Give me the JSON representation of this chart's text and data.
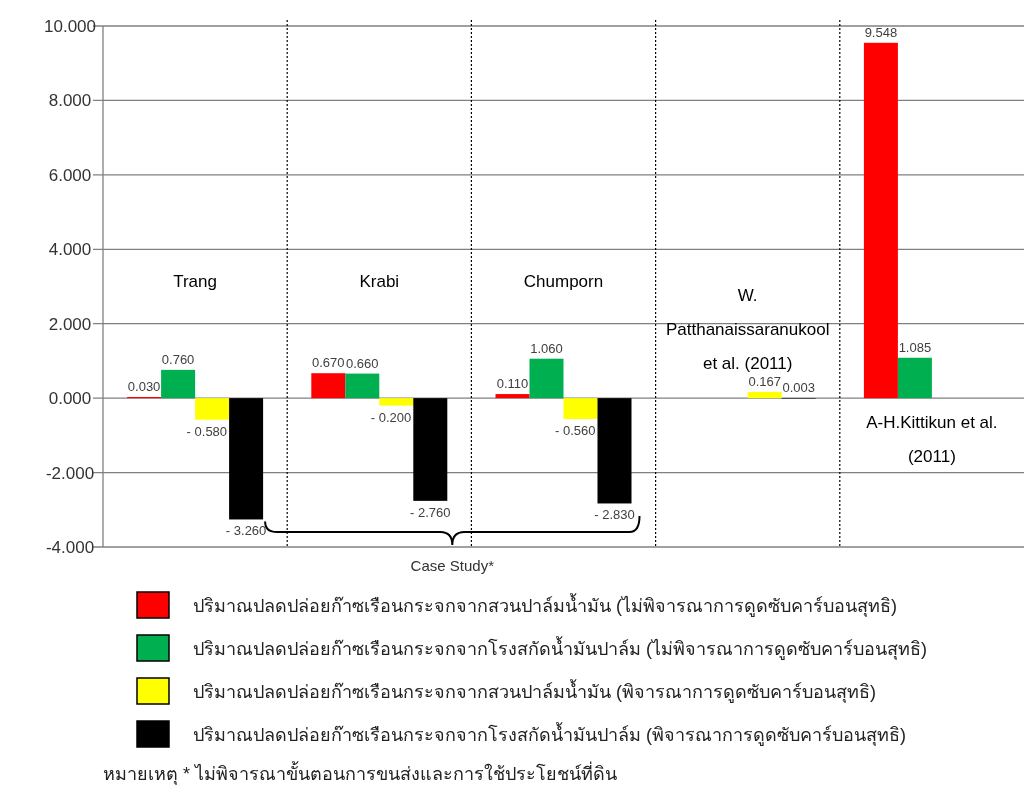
{
  "chart_data": {
    "type": "bar",
    "categories": [
      "Trang",
      "Krabi",
      "Chumporn",
      "W. Patthanaissaranukool et al. (2011)",
      "A-H.Kittikun et al. (2011)"
    ],
    "series": [
      {
        "name": "ปริมาณปลดปล่อยก๊าซเรือนกระจกจากสวนปาล์มน้ำมัน (ไม่พิจารณาการดูดซับคาร์บอนสุทธิ)",
        "color": "#ff0000",
        "values": [
          0.03,
          0.67,
          0.11,
          null,
          9.548
        ],
        "value_labels": [
          "0.030",
          "0.670",
          "0.110",
          null,
          "9.548"
        ]
      },
      {
        "name": "ปริมาณปลดปล่อยก๊าซเรือนกระจกจากโรงสกัดน้ำมันปาล์ม (ไม่พิจารณาการดูดซับคาร์บอนสุทธิ)",
        "color": "#00b050",
        "values": [
          0.76,
          0.66,
          1.06,
          null,
          1.085
        ],
        "value_labels": [
          "0.760",
          "0.660",
          "1.060",
          null,
          "1.085"
        ]
      },
      {
        "name": "ปริมาณปลดปล่อยก๊าซเรือนกระจกจากสวนปาล์มน้ำมัน (พิจารณาการดูดซับคาร์บอนสุทธิ)",
        "color": "#ffff00",
        "values": [
          -0.58,
          -0.2,
          -0.56,
          0.167,
          null
        ],
        "value_labels": [
          "- 0.580",
          "- 0.200",
          "- 0.560",
          "0.167",
          null
        ]
      },
      {
        "name": "ปริมาณปลดปล่อยก๊าซเรือนกระจกจากโรงสกัดน้ำมันปาล์ม (พิจารณาการดูดซับคาร์บอนสุทธิ)",
        "color": "#000000",
        "values": [
          -3.26,
          -2.76,
          -2.83,
          0.003,
          null
        ],
        "value_labels": [
          "- 3.260",
          "- 2.760",
          "- 2.830",
          "0.003",
          null
        ]
      }
    ],
    "ylim": [
      -4,
      10
    ],
    "yticks": [
      {
        "value": -4,
        "label": "-4.000"
      },
      {
        "value": -2,
        "label": "-2.000"
      },
      {
        "value": 0,
        "label": "0.000"
      },
      {
        "value": 2,
        "label": "2.000"
      },
      {
        "value": 4,
        "label": "4.000"
      },
      {
        "value": 6,
        "label": "6.000"
      },
      {
        "value": 8,
        "label": "8.000"
      },
      {
        "value": 10,
        "label": "10.000"
      }
    ],
    "grid": true,
    "legend": "bottom",
    "annotations": [
      "Case Study*",
      "หมายเหตุ  * ไม่พิจารณาขั้นตอนการขนส่งและการใช้ประโยชน์ที่ดิน"
    ]
  }
}
